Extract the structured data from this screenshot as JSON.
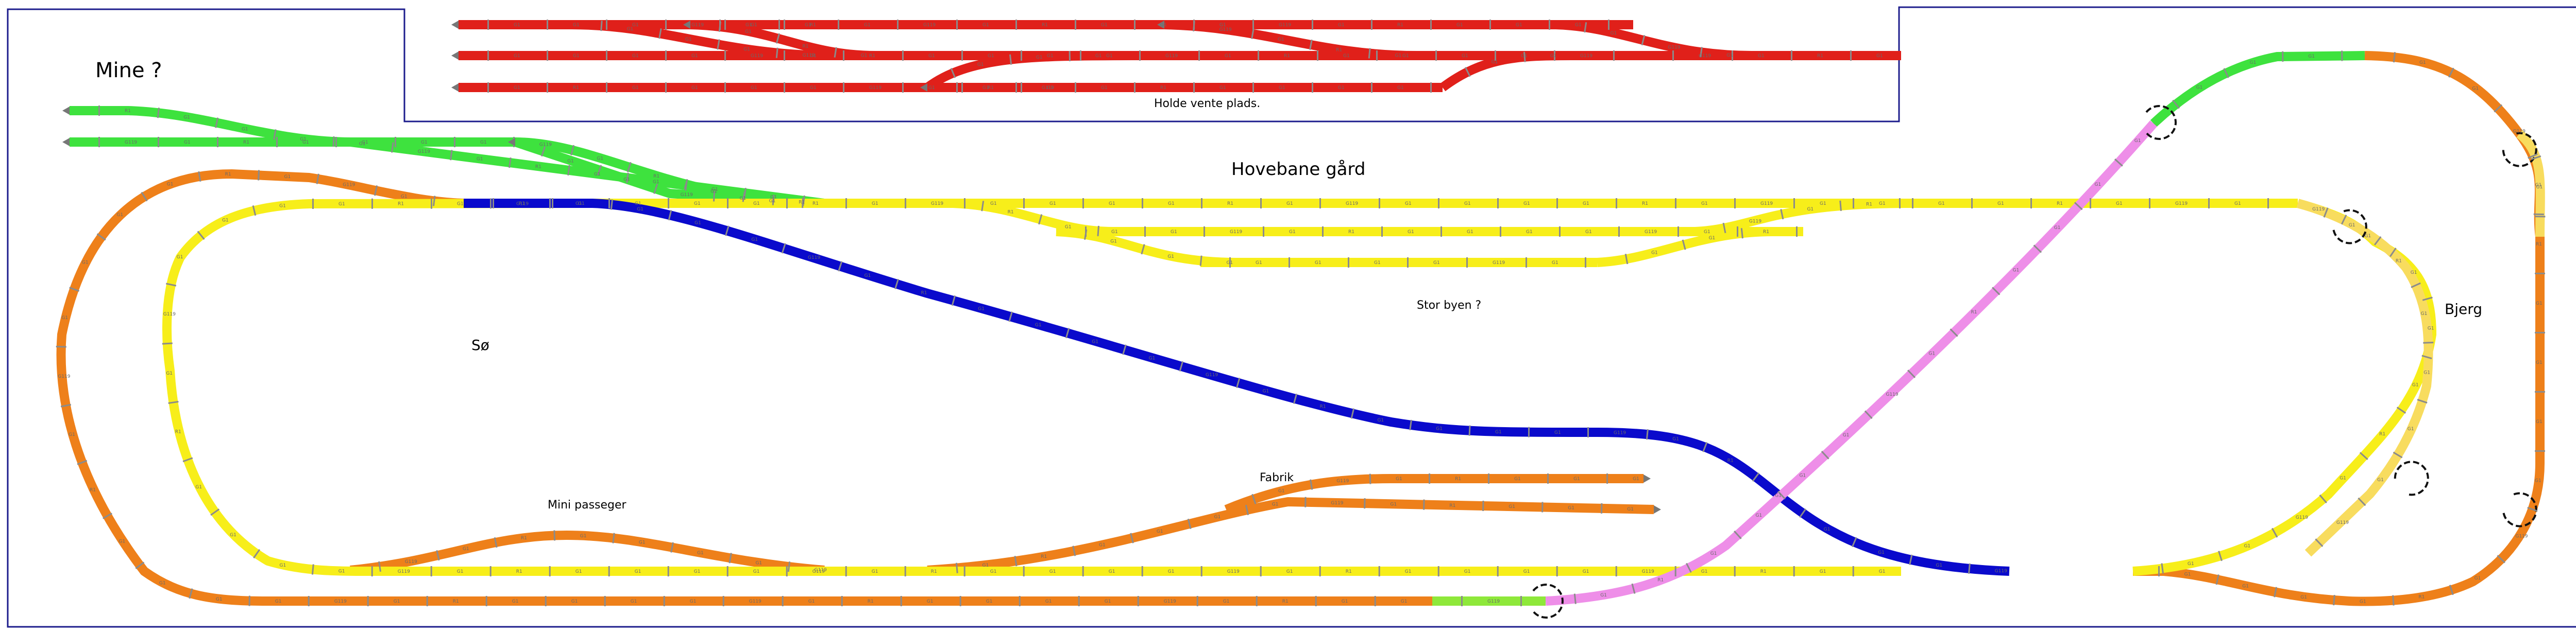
{
  "labels": {
    "mine": "Mine ?",
    "holde": "Holde vente plads.",
    "hovebane": "Hovebane gård",
    "stor_byen": "Stor byen ?",
    "soe": "Sø",
    "bjerg": "Bjerg",
    "fabrik": "Fabrik",
    "mini_passeger": "Mini passeger"
  },
  "piece_codes": [
    "G1",
    "G1",
    "G1",
    "G119",
    "G1",
    "R1",
    "G1"
  ],
  "colors": {
    "frame": "#1c1c8c",
    "red": "#e0201a",
    "green": "#3ee23e",
    "yellow": "#f7ee1a",
    "pale_yellow": "#f8dc5e",
    "orange": "#ee801a",
    "blue": "#0a0acc",
    "pink": "#ee8ee8",
    "lime": "#8ee83a",
    "tie": "#8b8b8b"
  }
}
